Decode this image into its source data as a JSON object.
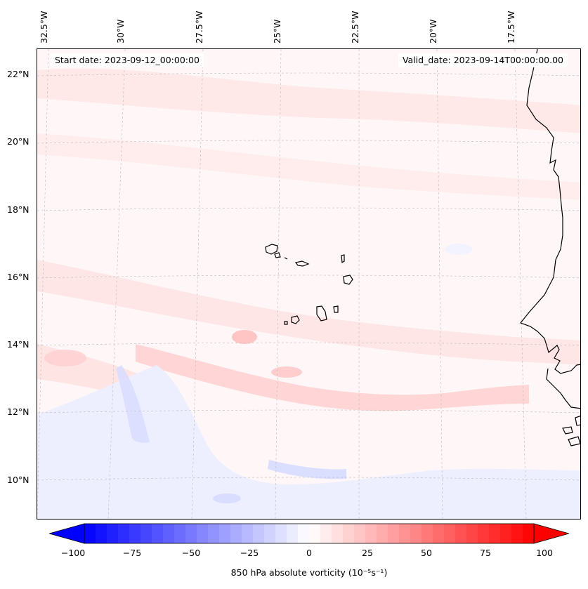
{
  "map": {
    "start_date": "Start date: 2023-09-12_00:00:00",
    "valid_date": "Valid_date: 2023-09-14T00:00:00.00",
    "lon_labels": [
      "32.5°W",
      "30°W",
      "27.5°W",
      "25°W",
      "22.5°W",
      "20°W",
      "17.5°W"
    ],
    "lat_labels": [
      "22°N",
      "20°N",
      "18°N",
      "16°N",
      "14°N",
      "12°N",
      "10°N"
    ],
    "field_colors": {
      "background": "#fff7f7",
      "light_red": "#ffe3e3",
      "mid_red": "#ffcdcd",
      "light_blue": "#eef0ff",
      "mid_blue": "#dcdfff",
      "coastline": "#000000",
      "gridline": "#bbbbbb"
    }
  },
  "colorbar": {
    "label": "850 hPa absolute vorticity (10⁻⁵s⁻¹)",
    "ticks": [
      "−100",
      "−75",
      "−50",
      "−25",
      "0",
      "25",
      "50",
      "75",
      "100"
    ],
    "min_color": "#0000ff",
    "mid_color": "#ffffff",
    "max_color": "#ff0000",
    "extend": "both"
  }
}
